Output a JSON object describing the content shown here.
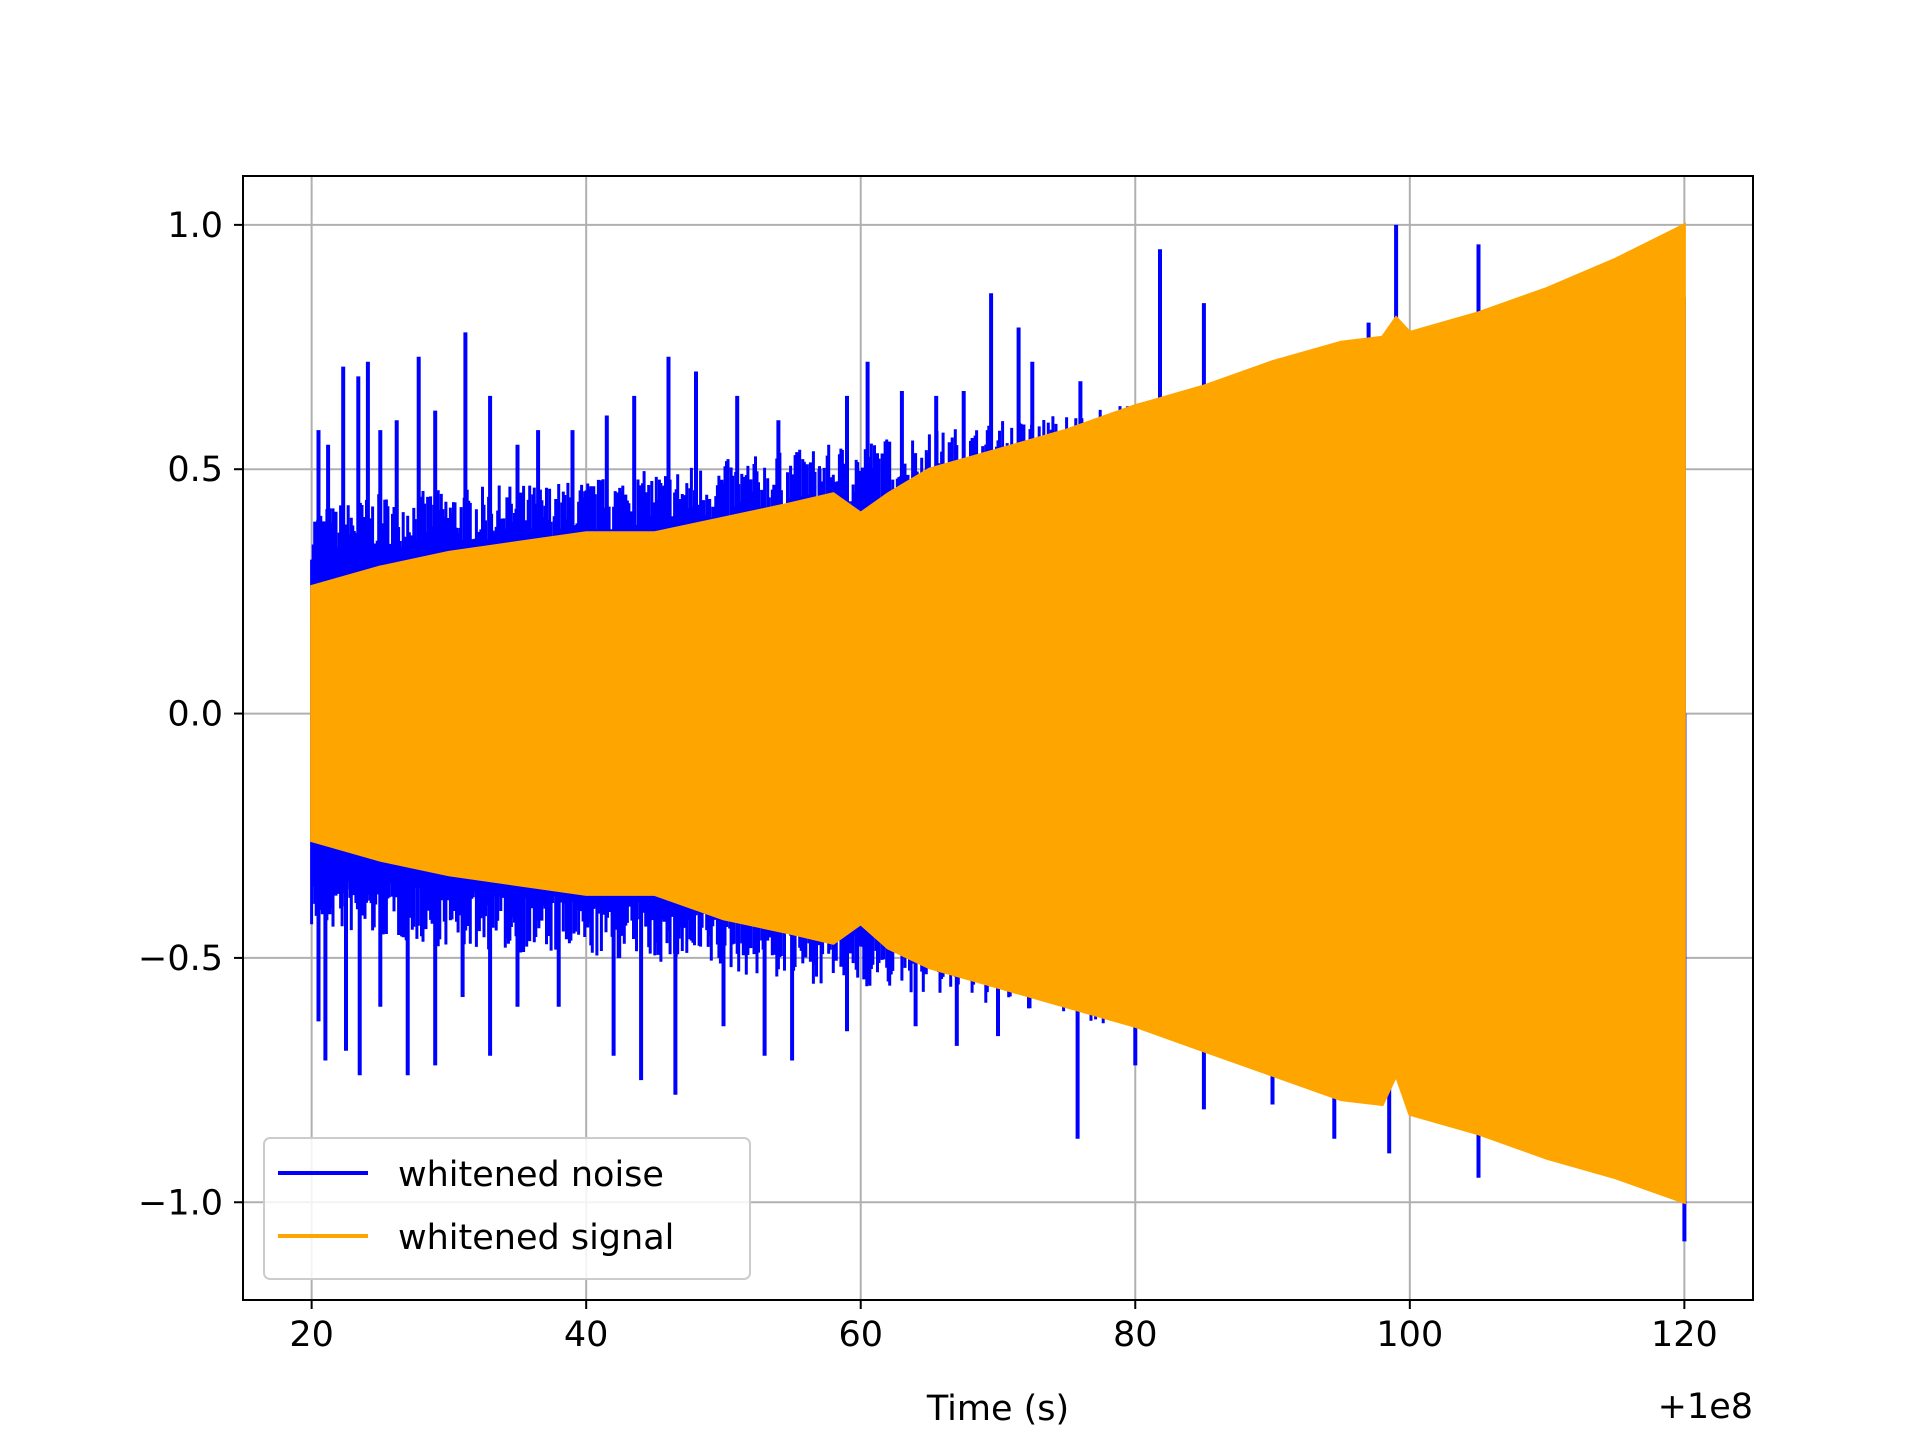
{
  "chart_data": {
    "type": "line",
    "title": "",
    "xlabel": "Time (s)",
    "ylabel": "",
    "x_offset_label": "+1e8",
    "xlim": [
      15,
      125
    ],
    "ylim": [
      -1.2,
      1.1
    ],
    "x_ticks": [
      20,
      40,
      60,
      80,
      100,
      120
    ],
    "x_tick_labels": [
      "20",
      "40",
      "60",
      "80",
      "100",
      "120"
    ],
    "y_ticks": [
      -1.0,
      -0.5,
      0.0,
      0.5,
      1.0
    ],
    "y_tick_labels": [
      "−1.0",
      "−0.5",
      "0.0",
      "0.5",
      "1.0"
    ],
    "grid": true,
    "legend_position": "lower-left",
    "series": [
      {
        "name": "whitened noise",
        "color": "#0000ff",
        "envelope": {
          "x": [
            20,
            25,
            30,
            35,
            40,
            45,
            50,
            55,
            60,
            65,
            70,
            75,
            80,
            85,
            90,
            95,
            100,
            105,
            110,
            115,
            120
          ],
          "upper": [
            0.42,
            0.45,
            0.46,
            0.47,
            0.48,
            0.5,
            0.52,
            0.54,
            0.56,
            0.58,
            0.6,
            0.62,
            0.64,
            0.66,
            0.7,
            0.73,
            0.78,
            0.82,
            0.86,
            0.9,
            0.98
          ],
          "lower": [
            -0.44,
            -0.46,
            -0.48,
            -0.49,
            -0.5,
            -0.51,
            -0.53,
            -0.55,
            -0.56,
            -0.58,
            -0.6,
            -0.62,
            -0.65,
            -0.68,
            -0.72,
            -0.76,
            -0.8,
            -0.84,
            -0.88,
            -0.92,
            -1.0
          ]
        },
        "spikes": [
          [
            20.5,
            0.58
          ],
          [
            21.2,
            0.55
          ],
          [
            22.3,
            0.71
          ],
          [
            23.4,
            0.69
          ],
          [
            24.1,
            0.72
          ],
          [
            25.0,
            0.58
          ],
          [
            26.2,
            0.6
          ],
          [
            27.8,
            0.73
          ],
          [
            29.0,
            0.62
          ],
          [
            31.2,
            0.78
          ],
          [
            33.0,
            0.65
          ],
          [
            35.0,
            0.55
          ],
          [
            36.5,
            0.58
          ],
          [
            39.0,
            0.58
          ],
          [
            41.5,
            0.61
          ],
          [
            43.5,
            0.65
          ],
          [
            46.0,
            0.73
          ],
          [
            48.0,
            0.7
          ],
          [
            51.0,
            0.65
          ],
          [
            54.0,
            0.6
          ],
          [
            57.0,
            0.5
          ],
          [
            59.0,
            0.65
          ],
          [
            60.5,
            0.72
          ],
          [
            63.0,
            0.66
          ],
          [
            65.5,
            0.65
          ],
          [
            67.5,
            0.66
          ],
          [
            69.5,
            0.86
          ],
          [
            71.5,
            0.79
          ],
          [
            72.5,
            0.72
          ],
          [
            76.0,
            0.68
          ],
          [
            81.8,
            0.95
          ],
          [
            85.0,
            0.84
          ],
          [
            97.0,
            0.8
          ],
          [
            99.0,
            1.0
          ],
          [
            105.0,
            0.96
          ],
          [
            20.5,
            -0.63
          ],
          [
            21.0,
            -0.71
          ],
          [
            22.5,
            -0.69
          ],
          [
            23.5,
            -0.74
          ],
          [
            25.0,
            -0.6
          ],
          [
            27.0,
            -0.74
          ],
          [
            29.0,
            -0.72
          ],
          [
            31.0,
            -0.58
          ],
          [
            33.0,
            -0.7
          ],
          [
            35.0,
            -0.6
          ],
          [
            38.0,
            -0.6
          ],
          [
            42.0,
            -0.7
          ],
          [
            44.0,
            -0.75
          ],
          [
            46.5,
            -0.78
          ],
          [
            50.0,
            -0.64
          ],
          [
            53.0,
            -0.7
          ],
          [
            55.0,
            -0.71
          ],
          [
            59.0,
            -0.65
          ],
          [
            64.0,
            -0.64
          ],
          [
            67.0,
            -0.68
          ],
          [
            70.0,
            -0.66
          ],
          [
            75.8,
            -0.87
          ],
          [
            80.0,
            -0.72
          ],
          [
            85.0,
            -0.81
          ],
          [
            90.0,
            -0.8
          ],
          [
            94.5,
            -0.87
          ],
          [
            98.5,
            -0.9
          ],
          [
            105.0,
            -0.95
          ],
          [
            120.0,
            -1.08
          ]
        ]
      },
      {
        "name": "whitened signal",
        "color": "#ffa500",
        "envelope": {
          "x": [
            20,
            25,
            30,
            35,
            40,
            45,
            50,
            55,
            58,
            60,
            62,
            65,
            70,
            75,
            80,
            85,
            90,
            95,
            98,
            99,
            100,
            105,
            110,
            115,
            120
          ],
          "upper": [
            0.26,
            0.3,
            0.33,
            0.35,
            0.37,
            0.37,
            0.4,
            0.43,
            0.45,
            0.41,
            0.45,
            0.5,
            0.54,
            0.58,
            0.63,
            0.67,
            0.72,
            0.76,
            0.77,
            0.81,
            0.78,
            0.82,
            0.87,
            0.93,
            1.0
          ],
          "lower": [
            -0.26,
            -0.3,
            -0.33,
            -0.35,
            -0.37,
            -0.37,
            -0.42,
            -0.45,
            -0.47,
            -0.43,
            -0.48,
            -0.52,
            -0.56,
            -0.6,
            -0.64,
            -0.69,
            -0.74,
            -0.79,
            -0.8,
            -0.74,
            -0.82,
            -0.86,
            -0.91,
            -0.95,
            -1.0
          ]
        }
      }
    ]
  }
}
